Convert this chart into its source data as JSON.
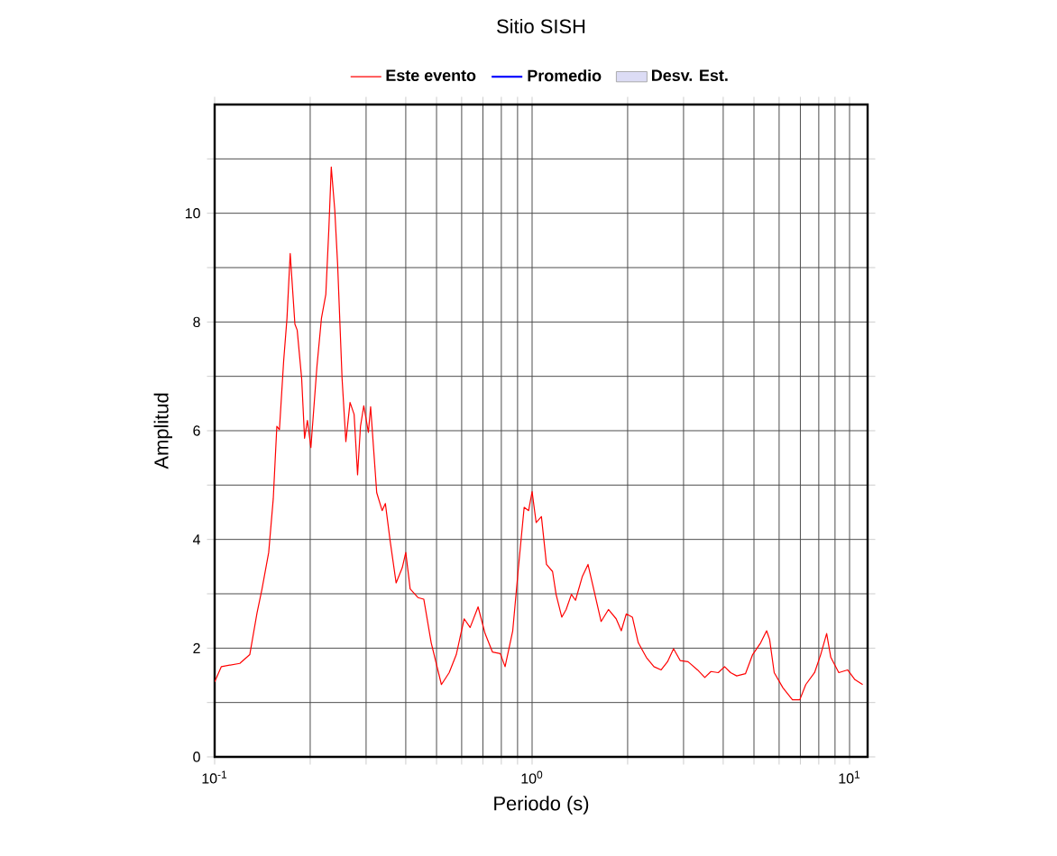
{
  "chart_data": {
    "type": "line",
    "title": "Sitio SISH",
    "xlabel": "Periodo (s)",
    "ylabel": "Amplitud",
    "log": "x",
    "grid": true,
    "legend": "top",
    "xlim": [
      0.1,
      11.4
    ],
    "ylim": [
      0,
      12
    ],
    "xticks": [
      {
        "value": 0.1,
        "label": "10$^{-1}$"
      },
      {
        "value": 0.2,
        "label": null
      },
      {
        "value": 0.3,
        "label": null
      },
      {
        "value": 0.4,
        "label": null
      },
      {
        "value": 0.5,
        "label": null
      },
      {
        "value": 0.6,
        "label": null
      },
      {
        "value": 0.7,
        "label": null
      },
      {
        "value": 0.8,
        "label": null
      },
      {
        "value": 0.9,
        "label": null
      },
      {
        "value": 1,
        "label": "10$^{0}$"
      },
      {
        "value": 2,
        "label": null
      },
      {
        "value": 3,
        "label": null
      },
      {
        "value": 4,
        "label": null
      },
      {
        "value": 5,
        "label": null
      },
      {
        "value": 6,
        "label": null
      },
      {
        "value": 7,
        "label": null
      },
      {
        "value": 8,
        "label": null
      },
      {
        "value": 9,
        "label": null
      },
      {
        "value": 10,
        "label": "10$^{1}$"
      }
    ],
    "yticks": [
      0,
      {
        "value": 1,
        "label": null
      },
      2,
      {
        "value": 3,
        "label": null
      },
      4,
      {
        "value": 5,
        "label": null
      },
      6,
      {
        "value": 7,
        "label": null
      },
      8,
      {
        "value": 9,
        "label": null
      },
      10,
      {
        "value": 11,
        "label": null
      }
    ],
    "series": [
      {
        "name": "Este evento",
        "color": "#ff0000",
        "x": [
          0.1,
          0.105,
          0.12,
          0.129,
          0.136,
          0.141,
          0.148,
          0.153,
          0.157,
          0.16,
          0.165,
          0.169,
          0.173,
          0.179,
          0.182,
          0.188,
          0.192,
          0.196,
          0.201,
          0.21,
          0.217,
          0.224,
          0.229,
          0.233,
          0.239,
          0.244,
          0.252,
          0.259,
          0.267,
          0.275,
          0.282,
          0.288,
          0.295,
          0.305,
          0.31,
          0.324,
          0.337,
          0.345,
          0.357,
          0.373,
          0.39,
          0.4,
          0.413,
          0.437,
          0.456,
          0.481,
          0.518,
          0.548,
          0.577,
          0.611,
          0.638,
          0.676,
          0.711,
          0.75,
          0.794,
          0.822,
          0.869,
          0.904,
          0.944,
          0.975,
          1.0,
          1.03,
          1.07,
          1.11,
          1.16,
          1.19,
          1.24,
          1.28,
          1.33,
          1.37,
          1.44,
          1.5,
          1.57,
          1.65,
          1.74,
          1.84,
          1.91,
          1.98,
          2.07,
          2.16,
          2.29,
          2.42,
          2.55,
          2.67,
          2.79,
          2.93,
          3.1,
          3.32,
          3.5,
          3.66,
          3.86,
          4.04,
          4.22,
          4.41,
          4.7,
          4.95,
          5.25,
          5.48,
          5.6,
          5.79,
          6.17,
          6.61,
          6.97,
          7.28,
          7.76,
          8.11,
          8.47,
          8.73,
          9.25,
          9.86,
          10.4,
          11.0
        ],
        "values": [
          1.38,
          1.66,
          1.72,
          1.88,
          2.65,
          3.09,
          3.76,
          4.75,
          6.08,
          6.02,
          7.29,
          8.07,
          9.26,
          7.96,
          7.85,
          6.96,
          5.86,
          6.19,
          5.69,
          7.18,
          8.07,
          8.51,
          9.72,
          10.85,
          10.06,
          9.06,
          6.96,
          5.8,
          6.52,
          6.3,
          5.19,
          6.08,
          6.46,
          5.97,
          6.44,
          4.86,
          4.53,
          4.66,
          3.98,
          3.2,
          3.48,
          3.76,
          3.09,
          2.93,
          2.9,
          2.1,
          1.33,
          1.55,
          1.88,
          2.54,
          2.38,
          2.76,
          2.27,
          1.93,
          1.9,
          1.66,
          2.32,
          3.43,
          4.59,
          4.53,
          4.88,
          4.31,
          4.42,
          3.54,
          3.41,
          2.99,
          2.57,
          2.71,
          2.99,
          2.88,
          3.32,
          3.54,
          3.04,
          2.49,
          2.71,
          2.54,
          2.32,
          2.63,
          2.57,
          2.1,
          1.83,
          1.66,
          1.6,
          1.75,
          1.99,
          1.77,
          1.75,
          1.6,
          1.46,
          1.57,
          1.55,
          1.66,
          1.55,
          1.49,
          1.53,
          1.88,
          2.1,
          2.32,
          2.16,
          1.55,
          1.27,
          1.05,
          1.05,
          1.33,
          1.55,
          1.88,
          2.27,
          1.83,
          1.55,
          1.6,
          1.42,
          1.33
        ]
      },
      {
        "name": "Promedio",
        "type": "line",
        "color": "#0000ff"
      },
      {
        "name": "Desv. Est.",
        "type": "area",
        "color": "#dcdcf5"
      }
    ]
  }
}
